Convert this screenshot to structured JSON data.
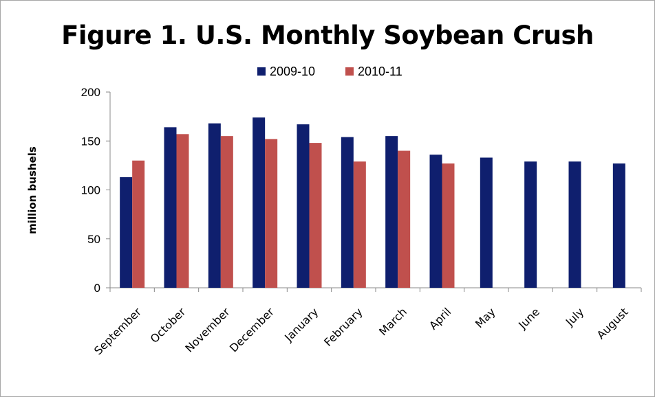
{
  "chart_data": {
    "type": "bar",
    "title": "Figure 1. U.S. Monthly Soybean Crush",
    "ylabel": "million bushels",
    "xlabel": "",
    "ylim": [
      0,
      200
    ],
    "yticks": [
      0,
      50,
      100,
      150,
      200
    ],
    "grid": false,
    "legend": "top-center",
    "categories": [
      "September",
      "October",
      "November",
      "December",
      "January",
      "February",
      "March",
      "April",
      "May",
      "June",
      "July",
      "August"
    ],
    "series": [
      {
        "name": "2009-10",
        "color": "#0f1f6e",
        "values": [
          113,
          164,
          168,
          174,
          167,
          154,
          155,
          136,
          133,
          129,
          129,
          127
        ]
      },
      {
        "name": "2010-11",
        "color": "#c0504d",
        "values": [
          130,
          157,
          155,
          152,
          148,
          129,
          140,
          127,
          null,
          null,
          null,
          null
        ]
      }
    ]
  }
}
